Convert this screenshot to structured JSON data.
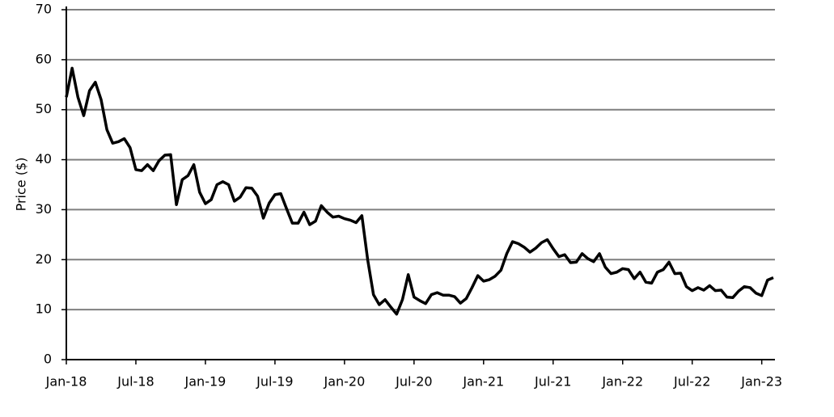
{
  "chart_data": {
    "type": "line",
    "ylabel": "Price ($)",
    "categories": [
      "Jan-18",
      null,
      null,
      null,
      null,
      null,
      null,
      null,
      null,
      null,
      null,
      null,
      "Jul-18",
      null,
      null,
      null,
      null,
      null,
      null,
      null,
      null,
      null,
      null,
      null,
      "Jan-19",
      null,
      null,
      null,
      null,
      null,
      null,
      null,
      null,
      null,
      null,
      null,
      "Jul-19",
      null,
      null,
      null,
      null,
      null,
      null,
      null,
      null,
      null,
      null,
      null,
      "Jan-20",
      null,
      null,
      null,
      null,
      null,
      null,
      null,
      null,
      null,
      null,
      null,
      "Jul-20",
      null,
      null,
      null,
      null,
      null,
      null,
      null,
      null,
      null,
      null,
      null,
      "Jan-21",
      null,
      null,
      null,
      null,
      null,
      null,
      null,
      null,
      null,
      null,
      null,
      "Jul-21",
      null,
      null,
      null,
      null,
      null,
      null,
      null,
      null,
      null,
      null,
      null,
      "Jan-22",
      null,
      null,
      null,
      null,
      null,
      null,
      null,
      null,
      null,
      null,
      null,
      "Jul-22",
      null,
      null,
      null,
      null,
      null,
      null,
      null,
      null,
      null,
      null,
      null,
      "Jan-23",
      null,
      null
    ],
    "series": [
      {
        "name": "Price",
        "color": "#000000",
        "values": [
          52.5,
          58.3,
          52.5,
          48.8,
          53.8,
          55.5,
          52,
          46,
          43.3,
          43.6,
          44.2,
          42.4,
          38,
          37.8,
          39,
          37.8,
          39.8,
          40.9,
          41,
          31,
          36,
          36.8,
          39,
          33.5,
          31.2,
          32,
          35,
          35.6,
          35,
          31.7,
          32.5,
          34.4,
          34.3,
          32.7,
          28.3,
          31.3,
          33,
          33.2,
          30.2,
          27.3,
          27.3,
          29.5,
          27,
          27.7,
          30.8,
          29.5,
          28.5,
          28.7,
          28.2,
          27.9,
          27.4,
          28.8,
          20,
          13,
          11,
          12,
          10.5,
          9.1,
          12,
          17,
          12.5,
          11.8,
          11.2,
          13,
          13.4,
          12.9,
          12.9,
          12.6,
          11.3,
          12.2,
          14.4,
          16.8,
          15.7,
          16,
          16.7,
          17.9,
          21.2,
          23.6,
          23.2,
          22.5,
          21.5,
          22.3,
          23.4,
          24,
          22.2,
          20.6,
          21,
          19.4,
          19.5,
          21.2,
          20.2,
          19.6,
          21.2,
          18.5,
          17.2,
          17.5,
          18.2,
          18,
          16.2,
          17.5,
          15.5,
          15.3,
          17.5,
          18,
          19.5,
          17.2,
          17.3,
          14.6,
          13.8,
          14.4,
          13.9,
          14.8,
          13.8,
          13.9,
          12.5,
          12.4,
          13.7,
          14.6,
          14.4,
          13.3,
          12.8,
          15.9,
          16.4
        ]
      }
    ],
    "ylim": [
      0,
      70
    ],
    "yticks": [
      0,
      10,
      20,
      30,
      40,
      50,
      60,
      70
    ],
    "grid": true
  }
}
